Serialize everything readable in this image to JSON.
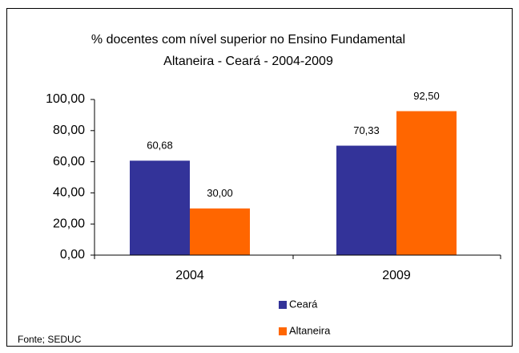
{
  "chart_data": {
    "type": "bar",
    "title": "% docentes com nível  superior no Ensino Fundamental",
    "subtitle": "Altaneira  -  Ceará - 2004-2009",
    "source": "Fonte; SEDUC",
    "categories": [
      "2004",
      "2009"
    ],
    "series": [
      {
        "name": "Ceará",
        "color": "#333399",
        "values": [
          60.68,
          70.33
        ],
        "value_labels": [
          "60,68",
          "70,33"
        ]
      },
      {
        "name": "Altaneira",
        "color": "#ff6600",
        "values": [
          30.0,
          92.5
        ],
        "value_labels": [
          "30,00",
          "92,50"
        ]
      }
    ],
    "ylim": [
      0,
      100
    ],
    "yticks": [
      {
        "value": 0,
        "label": "0,00"
      },
      {
        "value": 20,
        "label": "20,00"
      },
      {
        "value": 40,
        "label": "40,00"
      },
      {
        "value": 60,
        "label": "60,00"
      },
      {
        "value": 80,
        "label": "80,00"
      },
      {
        "value": 100,
        "label": "100,00"
      }
    ],
    "grid": false,
    "legend": "bottom"
  }
}
